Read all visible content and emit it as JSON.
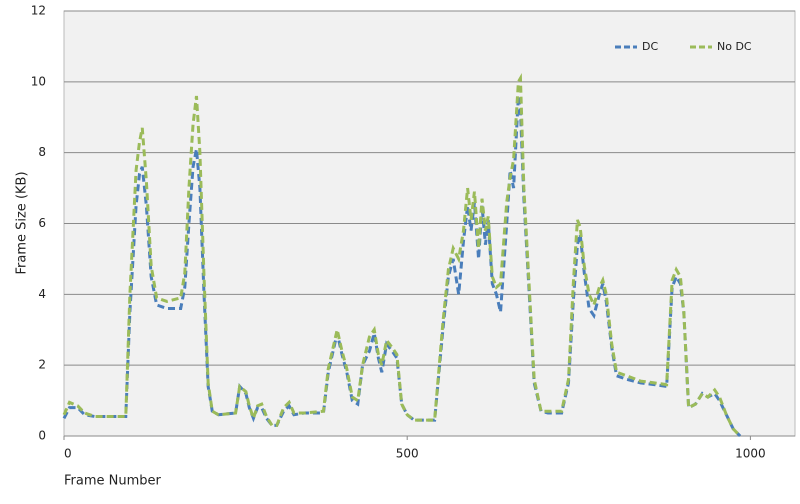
{
  "chart_data": {
    "type": "line",
    "x_label": "Frame Number",
    "y_label": "Frame Size (KB)",
    "xlim": [
      0,
      1065
    ],
    "xticks": [
      0,
      500,
      1000
    ],
    "ylim": [
      0,
      12
    ],
    "yticks": [
      0,
      2,
      4,
      6,
      8,
      10,
      12
    ],
    "grid": true,
    "legend": "top-right",
    "x": [
      0,
      8,
      20,
      30,
      45,
      90,
      96,
      105,
      110,
      114,
      120,
      127,
      135,
      150,
      170,
      176,
      182,
      188,
      193,
      198,
      204,
      210,
      216,
      225,
      250,
      256,
      265,
      270,
      276,
      282,
      288,
      295,
      303,
      310,
      320,
      328,
      335,
      350,
      378,
      385,
      398,
      405,
      412,
      420,
      428,
      435,
      445,
      452,
      458,
      463,
      470,
      478,
      485,
      492,
      500,
      510,
      540,
      552,
      560,
      567,
      575,
      582,
      588,
      593,
      598,
      604,
      609,
      614,
      618,
      624,
      630,
      636,
      645,
      650,
      655,
      662,
      665,
      670,
      677,
      685,
      695,
      705,
      725,
      735,
      742,
      748,
      752,
      758,
      765,
      772,
      780,
      785,
      790,
      798,
      805,
      820,
      840,
      860,
      878,
      886,
      892,
      898,
      903,
      910,
      920,
      930,
      938,
      948,
      955,
      965,
      975,
      985
    ],
    "series": [
      {
        "name": "DC",
        "color": "#4a7ebb",
        "values": [
          0.5,
          0.8,
          0.8,
          0.6,
          0.55,
          0.55,
          3.5,
          6.5,
          7.4,
          7.6,
          6.5,
          4.5,
          3.7,
          3.6,
          3.6,
          4.2,
          6,
          7.6,
          8.1,
          7,
          4,
          1.4,
          0.7,
          0.6,
          0.65,
          1.4,
          1.2,
          0.8,
          0.5,
          0.8,
          0.8,
          0.5,
          0.3,
          0.3,
          0.7,
          0.85,
          0.6,
          0.65,
          0.65,
          1.8,
          2.9,
          2.3,
          1.8,
          1.0,
          0.9,
          2.0,
          2.4,
          2.9,
          2.2,
          1.8,
          2.6,
          2.4,
          2.2,
          0.9,
          0.6,
          0.45,
          0.45,
          3.0,
          4.5,
          5.0,
          4.0,
          5.5,
          6.5,
          5.8,
          6.6,
          5.0,
          6.5,
          5.4,
          6.1,
          4.3,
          4.0,
          3.5,
          6.0,
          7.5,
          7.0,
          9.6,
          9.2,
          6.7,
          4.3,
          1.5,
          0.7,
          0.65,
          0.65,
          1.5,
          3.8,
          5.4,
          5.7,
          4.6,
          3.6,
          3.4,
          4.0,
          4.3,
          3.8,
          2.5,
          1.7,
          1.6,
          1.5,
          1.45,
          1.4,
          4.2,
          4.5,
          4.3,
          3.5,
          0.8,
          0.9,
          1.2,
          1.1,
          1.2,
          1.0,
          0.6,
          0.2,
          0
        ]
      },
      {
        "name": "No DC",
        "color": "#9bbb59",
        "values": [
          0.6,
          0.95,
          0.85,
          0.65,
          0.55,
          0.55,
          4,
          7.5,
          8.3,
          8.7,
          7.2,
          4.8,
          3.9,
          3.8,
          3.9,
          4.6,
          7,
          8.8,
          9.6,
          8,
          4.5,
          1.5,
          0.7,
          0.6,
          0.65,
          1.4,
          1.25,
          0.85,
          0.5,
          0.85,
          0.9,
          0.55,
          0.3,
          0.3,
          0.8,
          0.95,
          0.65,
          0.65,
          0.7,
          1.9,
          3.0,
          2.4,
          1.9,
          1.1,
          1.0,
          2.0,
          2.8,
          3.0,
          2.3,
          2.0,
          2.7,
          2.5,
          2.3,
          0.9,
          0.6,
          0.45,
          0.45,
          3.2,
          4.7,
          5.3,
          5.0,
          5.8,
          7.0,
          6.1,
          6.9,
          5.3,
          6.7,
          5.8,
          6.2,
          4.5,
          4.2,
          4.3,
          6.6,
          7.3,
          7.8,
          10.0,
          10.1,
          7.0,
          4.5,
          1.6,
          0.7,
          0.7,
          0.7,
          1.6,
          4.3,
          6.1,
          5.9,
          4.8,
          4.0,
          3.7,
          4.2,
          4.4,
          4.0,
          2.6,
          1.8,
          1.7,
          1.55,
          1.5,
          1.45,
          4.4,
          4.7,
          4.5,
          3.5,
          0.8,
          0.9,
          1.2,
          1.1,
          1.3,
          1.1,
          0.6,
          0.2,
          0
        ]
      }
    ]
  }
}
